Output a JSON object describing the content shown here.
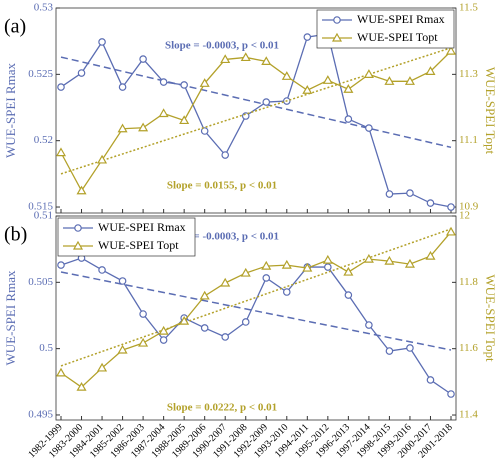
{
  "chart_data": [
    {
      "type": "line",
      "panel_label": "(a)",
      "categories": [
        "1982-1999",
        "1983-2000",
        "1984-2001",
        "1985-2002",
        "1986-2003",
        "1987-2004",
        "1988-2005",
        "1989-2006",
        "1990-2007",
        "1991-2008",
        "1992-2009",
        "1993-2010",
        "1994-2011",
        "1995-2012",
        "1996-2013",
        "1997-2014",
        "1998-2015",
        "1999-2016",
        "2000-2017",
        "2001-2018"
      ],
      "y_label": "WUE-SPEI Rmax",
      "y2_label": "WUE-SPEI Topt",
      "ylim": [
        0.51455,
        0.53
      ],
      "yticks": [
        0.515,
        0.52,
        0.525,
        0.53
      ],
      "y2lim": [
        10.882,
        11.5
      ],
      "y2ticks": [
        10.9,
        11.1,
        11.3,
        11.5
      ],
      "legend": "upper right",
      "series": [
        {
          "name": "WUE-SPEI Rmax",
          "color": "#5b6db3",
          "marker": "circle",
          "values": [
            0.52404,
            0.5251,
            0.52744,
            0.52404,
            0.52615,
            0.52442,
            0.5242,
            0.52073,
            0.51892,
            0.52186,
            0.52291,
            0.52299,
            0.52781,
            0.52804,
            0.52163,
            0.52095,
            0.51598,
            0.51605,
            0.5153,
            0.515
          ],
          "trend": [
            0.5263,
            0.5195
          ]
        },
        {
          "name": "WUE-SPEI Topt",
          "color": "#b3a12a",
          "marker": "triangle",
          "axis": "y2",
          "values": [
            11.064,
            10.949,
            11.042,
            11.136,
            11.139,
            11.182,
            11.161,
            11.273,
            11.345,
            11.351,
            11.339,
            11.294,
            11.252,
            11.282,
            11.255,
            11.3,
            11.279,
            11.279,
            11.309,
            11.37
          ],
          "trend": [
            11.0,
            11.38
          ]
        }
      ],
      "annotations": [
        {
          "text": "Slope = -0.0003, p < 0.01",
          "color": "#5b6db3"
        },
        {
          "text": "Slope = 0.0155, p < 0.01",
          "color": "#b3a12a"
        }
      ]
    },
    {
      "type": "line",
      "panel_label": "(b)",
      "categories": [
        "1982-1999",
        "1983-2000",
        "1984-2001",
        "1985-2002",
        "1986-2003",
        "1987-2004",
        "1988-2005",
        "1989-2006",
        "1990-2007",
        "1991-2008",
        "1992-2009",
        "1993-2010",
        "1994-2011",
        "1995-2012",
        "1996-2013",
        "1997-2014",
        "1998-2015",
        "1999-2016",
        "2000-2017",
        "2001-2018"
      ],
      "y_label": "WUE-SPEI Rmax",
      "y2_label": "WUE-SPEI Topt",
      "ylim": [
        0.49462,
        0.51
      ],
      "yticks": [
        0.495,
        0.5,
        0.505,
        0.51
      ],
      "y2lim": [
        11.385,
        12
      ],
      "y2ticks": [
        11.4,
        11.6,
        11.8,
        12
      ],
      "legend": "upper left",
      "series": [
        {
          "name": "WUE-SPEI Rmax",
          "color": "#5b6db3",
          "marker": "circle",
          "values": [
            0.5063,
            0.50683,
            0.50593,
            0.5051,
            0.50261,
            0.50065,
            0.50231,
            0.50156,
            0.50088,
            0.50201,
            0.50533,
            0.50427,
            0.50615,
            0.50615,
            0.50404,
            0.50178,
            0.49982,
            0.50005,
            0.49764,
            0.49658
          ],
          "trend": [
            0.50578,
            0.4999
          ]
        },
        {
          "name": "WUE-SPEI Topt",
          "color": "#b3a12a",
          "marker": "triangle",
          "axis": "y2",
          "values": [
            11.527,
            11.484,
            11.542,
            11.596,
            11.617,
            11.653,
            11.683,
            11.759,
            11.798,
            11.828,
            11.849,
            11.852,
            11.843,
            11.867,
            11.831,
            11.87,
            11.864,
            11.855,
            11.879,
            11.952
          ],
          "trend": [
            11.548,
            11.961
          ]
        }
      ],
      "annotations": [
        {
          "text": "Slope = -0.0003, p < 0.01",
          "color": "#5b6db3"
        },
        {
          "text": "Slope = 0.0222, p < 0.01",
          "color": "#b3a12a"
        }
      ]
    }
  ]
}
